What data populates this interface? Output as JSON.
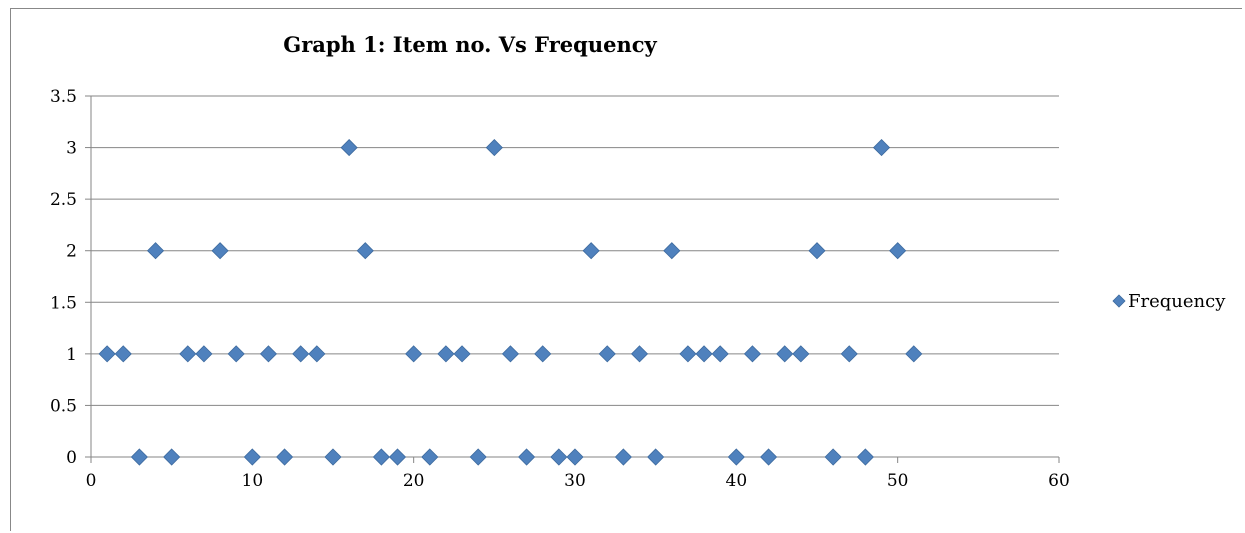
{
  "chart_data": {
    "type": "scatter",
    "title": "Graph 1:  Item no. Vs Frequency",
    "xlabel": "",
    "ylabel": "",
    "xlim": [
      0,
      60
    ],
    "ylim": [
      0,
      3.5
    ],
    "x_ticks": [
      "0",
      "10",
      "20",
      "30",
      "40",
      "50",
      "60"
    ],
    "y_ticks": [
      "0",
      "0.5",
      "1",
      "1.5",
      "2",
      "2.5",
      "3",
      "3.5"
    ],
    "grid": "horizontal",
    "legend_position": "right",
    "series": [
      {
        "name": "Frequency",
        "color": "#4f81bd",
        "marker": "diamond",
        "points": [
          {
            "x": 1,
            "y": 1
          },
          {
            "x": 2,
            "y": 1
          },
          {
            "x": 3,
            "y": 0
          },
          {
            "x": 4,
            "y": 2
          },
          {
            "x": 5,
            "y": 0
          },
          {
            "x": 6,
            "y": 1
          },
          {
            "x": 7,
            "y": 1
          },
          {
            "x": 8,
            "y": 2
          },
          {
            "x": 9,
            "y": 1
          },
          {
            "x": 10,
            "y": 0
          },
          {
            "x": 11,
            "y": 1
          },
          {
            "x": 12,
            "y": 0
          },
          {
            "x": 13,
            "y": 1
          },
          {
            "x": 14,
            "y": 1
          },
          {
            "x": 15,
            "y": 0
          },
          {
            "x": 16,
            "y": 3
          },
          {
            "x": 17,
            "y": 2
          },
          {
            "x": 18,
            "y": 0
          },
          {
            "x": 19,
            "y": 0
          },
          {
            "x": 20,
            "y": 1
          },
          {
            "x": 21,
            "y": 0
          },
          {
            "x": 22,
            "y": 1
          },
          {
            "x": 23,
            "y": 1
          },
          {
            "x": 24,
            "y": 0
          },
          {
            "x": 25,
            "y": 3
          },
          {
            "x": 26,
            "y": 1
          },
          {
            "x": 27,
            "y": 0
          },
          {
            "x": 28,
            "y": 1
          },
          {
            "x": 29,
            "y": 0
          },
          {
            "x": 30,
            "y": 0
          },
          {
            "x": 31,
            "y": 2
          },
          {
            "x": 32,
            "y": 1
          },
          {
            "x": 33,
            "y": 0
          },
          {
            "x": 34,
            "y": 1
          },
          {
            "x": 35,
            "y": 0
          },
          {
            "x": 36,
            "y": 2
          },
          {
            "x": 37,
            "y": 1
          },
          {
            "x": 38,
            "y": 1
          },
          {
            "x": 39,
            "y": 1
          },
          {
            "x": 40,
            "y": 0
          },
          {
            "x": 41,
            "y": 1
          },
          {
            "x": 42,
            "y": 0
          },
          {
            "x": 43,
            "y": 1
          },
          {
            "x": 44,
            "y": 1
          },
          {
            "x": 45,
            "y": 2
          },
          {
            "x": 46,
            "y": 0
          },
          {
            "x": 47,
            "y": 1
          },
          {
            "x": 48,
            "y": 0
          },
          {
            "x": 49,
            "y": 3
          },
          {
            "x": 50,
            "y": 2
          },
          {
            "x": 51,
            "y": 1
          }
        ]
      }
    ]
  }
}
